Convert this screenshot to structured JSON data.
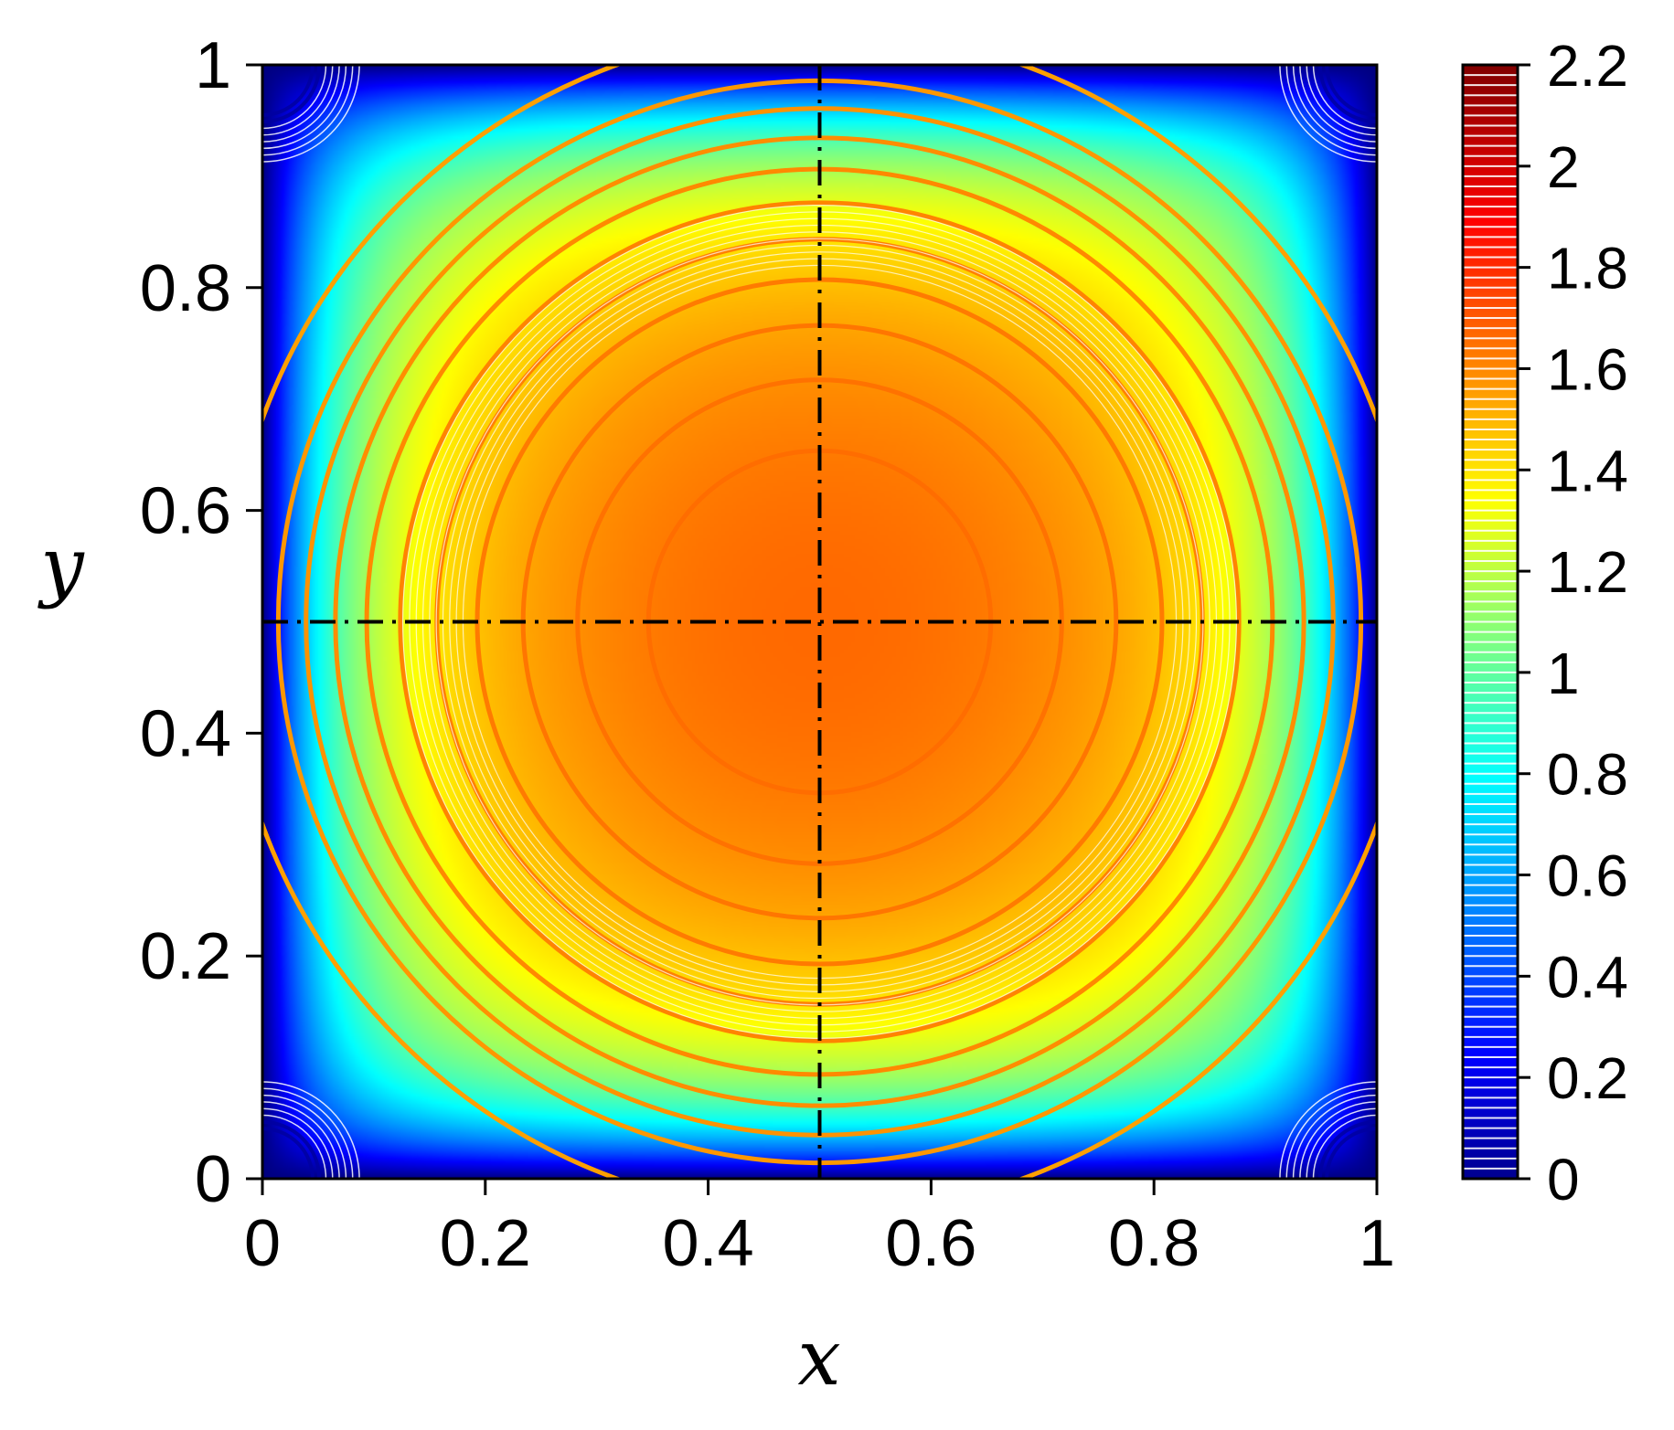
{
  "chart_data": {
    "type": "heatmap",
    "title": "",
    "xlabel": "x",
    "ylabel": "y",
    "xlim": [
      0,
      1
    ],
    "ylim": [
      0,
      1
    ],
    "x_ticks": [
      "0",
      "0.2",
      "0.4",
      "0.6",
      "0.8",
      "1"
    ],
    "y_ticks": [
      "0",
      "0.2",
      "0.4",
      "0.6",
      "0.8",
      "1"
    ],
    "colorbar": {
      "range": [
        0,
        2.2
      ],
      "ticks": [
        "0",
        "0.2",
        "0.4",
        "0.6",
        "0.8",
        "1",
        "1.2",
        "1.4",
        "1.6",
        "1.8",
        "2",
        "2.2"
      ],
      "colormap": "jet"
    },
    "field_max_estimate": 1.7,
    "reference_lines": [
      {
        "orientation": "vertical",
        "x": 0.5,
        "style": "dash-dot",
        "color": "#000000"
      },
      {
        "orientation": "horizontal",
        "y": 0.5,
        "style": "dash-dot",
        "color": "#000000"
      }
    ],
    "contour_levels_highlighted": [
      1.58,
      1.6,
      1.61,
      1.62,
      1.63,
      1.64,
      1.65,
      1.66,
      1.67,
      1.68,
      1.69
    ],
    "grid": false
  }
}
